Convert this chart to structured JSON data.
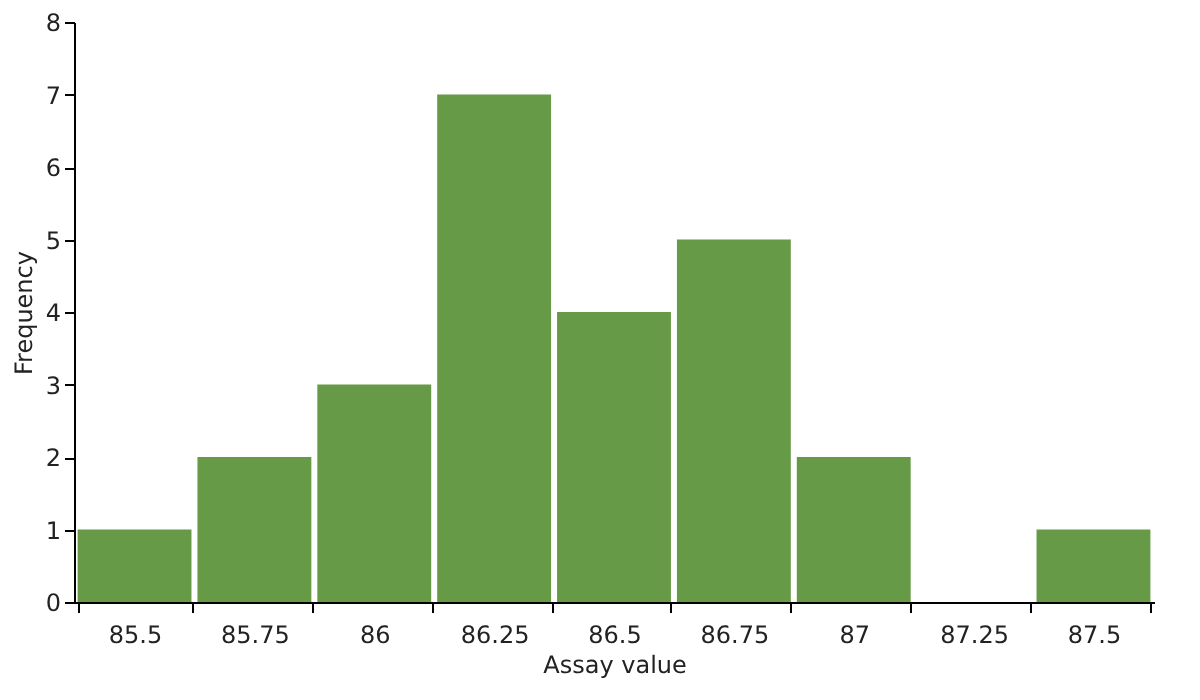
{
  "chart_data": {
    "type": "bar",
    "xlabel": "Assay value",
    "ylabel": "Frequency",
    "categories": [
      "85.5",
      "85.75",
      "86",
      "86.25",
      "86.5",
      "86.75",
      "87",
      "87.25",
      "87.5"
    ],
    "values": [
      1,
      2,
      3,
      7,
      4,
      5,
      2,
      0,
      1
    ],
    "color": "#679a46",
    "ylim": [
      0,
      8
    ],
    "yticks": [
      0,
      1,
      2,
      3,
      4,
      5,
      6,
      7,
      8
    ],
    "grid": false
  }
}
